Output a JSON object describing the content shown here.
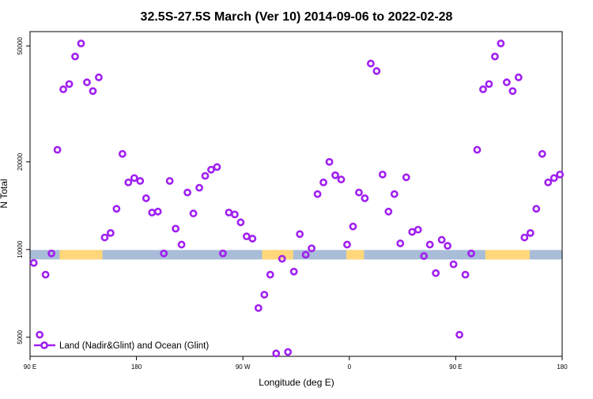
{
  "chart_data": {
    "type": "scatter",
    "title": "32.5S-27.5S March (Ver 10)   2014-09-06 to 2022-02-28",
    "xlabel": "Longitude (deg E)",
    "ylabel": "N Total",
    "y_scale": "log",
    "xlim": [
      90,
      450
    ],
    "ylim": [
      4300,
      56000
    ],
    "x_ticks": [
      {
        "value": 90,
        "label": "90 E"
      },
      {
        "value": 162,
        "label": "180"
      },
      {
        "value": 234,
        "label": "90 W"
      },
      {
        "value": 306,
        "label": "0"
      },
      {
        "value": 378,
        "label": "90 E"
      },
      {
        "value": 450,
        "label": "180"
      }
    ],
    "y_ticks": [
      {
        "value": 5000,
        "label": "5000"
      },
      {
        "value": 10000,
        "label": "10000"
      },
      {
        "value": 20000,
        "label": "20000"
      },
      {
        "value": 50000,
        "label": "50000"
      }
    ],
    "grid": false,
    "legend": {
      "position": "bottom-left",
      "entries": [
        {
          "label": "Land (Nadir&Glint) and Ocean (Glint)",
          "color": "#a020f0"
        }
      ]
    },
    "surface_band": {
      "value": 9600,
      "ocean_color": "#a9bcd8",
      "land_color": "#ffd77a",
      "land_segments": [
        [
          110,
          139
        ],
        [
          247,
          268
        ],
        [
          304,
          316
        ],
        [
          398,
          428
        ]
      ]
    },
    "series": [
      {
        "name": "Land (Nadir&Glint) and Ocean (Glint)",
        "color": "#a020f0",
        "x": [
          92.5,
          96.5,
          100.5,
          104.5,
          108.5,
          112.5,
          116.5,
          120.5,
          124.5,
          128.5,
          132.5,
          136.5,
          140.5,
          144.5,
          148.5,
          152.5,
          156.5,
          160.5,
          164.5,
          168.5,
          172.5,
          176.5,
          180.5,
          184.5,
          188.5,
          192.5,
          196.5,
          200.5,
          204.5,
          208.5,
          212.5,
          216.5,
          220.5,
          224.5,
          228.5,
          232.5,
          236.5,
          240.5,
          244.5,
          248.5,
          252.5,
          256.5,
          260.5,
          264.5,
          268.5,
          272.5,
          276.5,
          280.5,
          284.5,
          288.5,
          292.5,
          296.5,
          300.5,
          304.5,
          308.5,
          312.5,
          316.5,
          320.5,
          324.5,
          328.5,
          332.5,
          336.5,
          340.5,
          344.5,
          348.5,
          352.5,
          356.5,
          360.5,
          364.5,
          368.5,
          372.5,
          376.5,
          380.5,
          384.5,
          388.5,
          392.5,
          396.5,
          400.5,
          404.5,
          408.5,
          412.5,
          416.5,
          420.5,
          424.5,
          428.5,
          432.5,
          436.5,
          440.5,
          444.5,
          448.5
        ],
        "y": [
          9000,
          5100,
          8200,
          9700,
          22000,
          35500,
          37000,
          46000,
          51000,
          37500,
          35000,
          39000,
          11000,
          11400,
          13800,
          21300,
          17000,
          17600,
          17200,
          15000,
          13400,
          13500,
          9700,
          17200,
          11800,
          10400,
          15700,
          13300,
          16300,
          17900,
          18800,
          19200,
          9700,
          13400,
          13200,
          12400,
          11100,
          10900,
          6300,
          7000,
          8200,
          4400,
          9300,
          4450,
          8400,
          11300,
          9600,
          10100,
          15500,
          17000,
          20000,
          18000,
          17400,
          10400,
          12000,
          15700,
          15000,
          43500,
          41000,
          18100,
          13500,
          15500,
          10500,
          17700,
          11500,
          11700,
          9500,
          10400,
          8300,
          10800,
          10300,
          8900,
          5100,
          8200,
          9700,
          22000,
          35500,
          37000,
          46000,
          51000,
          37500,
          35000,
          39000,
          11000,
          11400,
          13800,
          21300,
          17000,
          17600,
          18100
        ]
      }
    ]
  }
}
